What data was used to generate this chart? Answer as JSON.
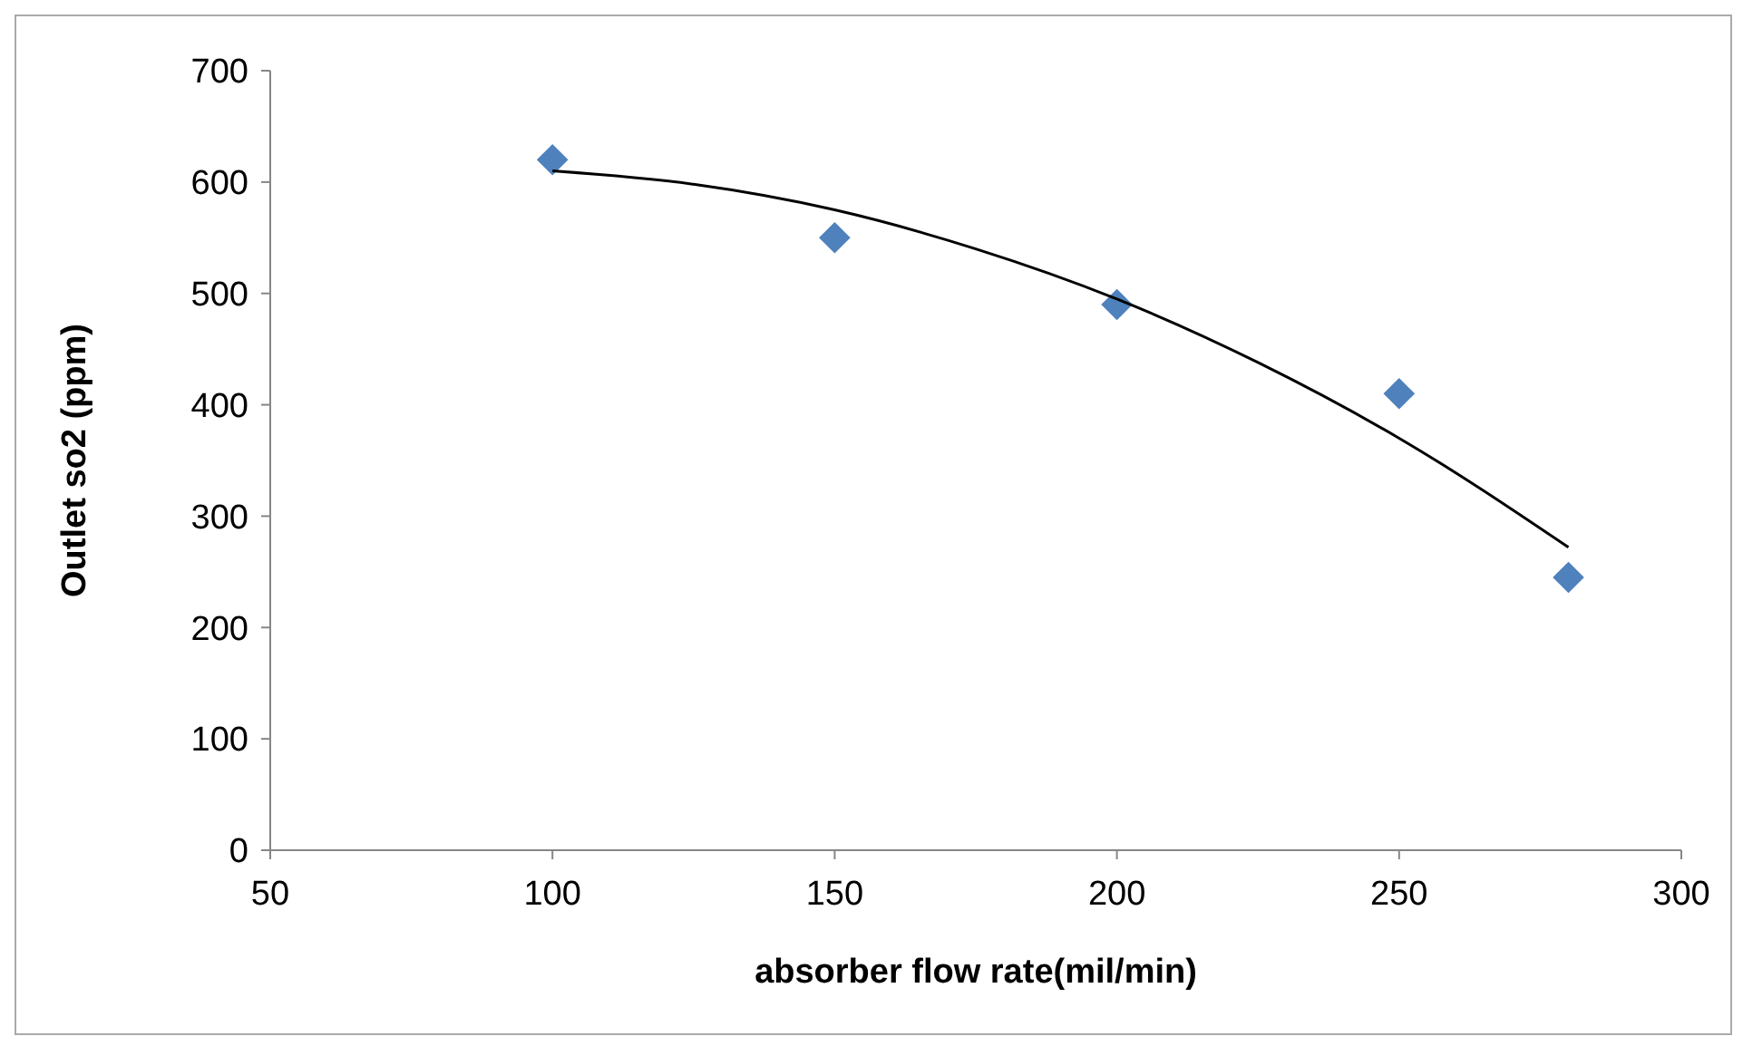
{
  "chart_data": {
    "type": "scatter",
    "xlabel": "absorber flow rate(mil/min)",
    "ylabel": "Outlet so2 (ppm)",
    "xlim": [
      50,
      300
    ],
    "xticks": [
      50,
      100,
      150,
      200,
      250,
      300
    ],
    "ylim": [
      0,
      700
    ],
    "yticks": [
      0,
      100,
      200,
      300,
      400,
      500,
      600,
      700
    ],
    "grid": false,
    "marker": "diamond",
    "series": [
      {
        "color": "#4f81bd",
        "x": [
          100,
          150,
          200,
          250,
          280
        ],
        "values": [
          620,
          550,
          490,
          410,
          245
        ]
      },
      {
        "type": "line",
        "color": "#000000",
        "marker": "none",
        "line_style": "solid",
        "x": [
          100,
          125,
          150,
          175,
          200,
          225,
          250,
          280
        ],
        "values": [
          610,
          598,
          575,
          540,
          495,
          438,
          370,
          272
        ]
      }
    ]
  }
}
